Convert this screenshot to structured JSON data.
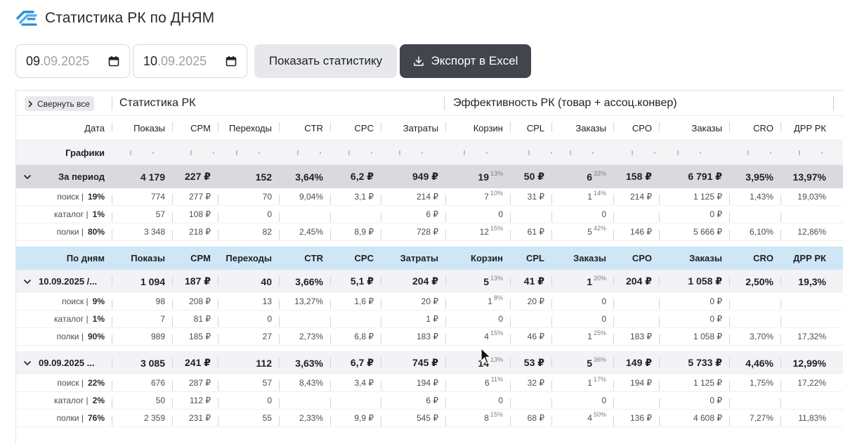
{
  "page": {
    "title": "Статистика РК по ДНЯМ"
  },
  "controls": {
    "date_from": {
      "day": "09",
      "rest": ".09.2025"
    },
    "date_to": {
      "day": "10",
      "rest": ".09.2025"
    },
    "show_button": "Показать статистику",
    "export_button": "Экспорт в Excel"
  },
  "table": {
    "collapse_all": "Свернуть все",
    "group_stats": "Статистика РК",
    "group_efficiency": "Эффективность РК (товар + ассоц.конвер)",
    "columns": [
      "Дата",
      "Показы",
      "CPM",
      "Переходы",
      "CTR",
      "CPC",
      "Затраты",
      "Корзин",
      "CPL",
      "Заказы",
      "CPO",
      "Заказы",
      "CRO",
      "ДРР РК"
    ],
    "graphs_label": "Графики",
    "period": {
      "label": "За период",
      "values": [
        "4 179",
        "227 ₽",
        "152",
        "3,64%",
        "6,2 ₽",
        "949 ₽",
        "19",
        "50 ₽",
        "6",
        "158 ₽",
        "6 791 ₽",
        "3,95%",
        "13,97%"
      ],
      "sup_cart": "13%",
      "sup_orders": "32%",
      "subs": [
        {
          "name": "поиск |",
          "pct": "19%",
          "values": [
            "774",
            "277 ₽",
            "70",
            "9,04%",
            "3,1 ₽",
            "214 ₽",
            "7",
            "31 ₽",
            "1",
            "214 ₽",
            "1 125 ₽",
            "1,43%",
            "19,03%"
          ],
          "sup_cart": "10%",
          "sup_orders": "14%"
        },
        {
          "name": "каталог |",
          "pct": "1%",
          "values": [
            "57",
            "108 ₽",
            "0",
            "",
            "",
            "6 ₽",
            "0",
            "",
            "0",
            "",
            "0 ₽",
            "",
            ""
          ],
          "sup_cart": "",
          "sup_orders": ""
        },
        {
          "name": "полки |",
          "pct": "80%",
          "values": [
            "3 348",
            "218 ₽",
            "82",
            "2,45%",
            "8,9 ₽",
            "728 ₽",
            "12",
            "61 ₽",
            "5",
            "146 ₽",
            "5 666 ₽",
            "6,10%",
            "12,86%"
          ],
          "sup_cart": "15%",
          "sup_orders": "42%"
        }
      ]
    },
    "days_header": {
      "label": "По дням",
      "columns": [
        "Показы",
        "CPM",
        "Переходы",
        "CTR",
        "CPC",
        "Затраты",
        "Корзин",
        "CPL",
        "Заказы",
        "CPO",
        "Заказы",
        "CRO",
        "ДРР РК"
      ]
    },
    "days": [
      {
        "label": "10.09.2025 /...",
        "values": [
          "1 094",
          "187 ₽",
          "40",
          "3,66%",
          "5,1 ₽",
          "204 ₽",
          "5",
          "41 ₽",
          "1",
          "204 ₽",
          "1 058 ₽",
          "2,50%",
          "19,3%"
        ],
        "sup_cart": "13%",
        "sup_orders": "20%",
        "subs": [
          {
            "name": "поиск |",
            "pct": "9%",
            "values": [
              "98",
              "208 ₽",
              "13",
              "13,27%",
              "1,6 ₽",
              "20 ₽",
              "1",
              "20 ₽",
              "0",
              "",
              "0 ₽",
              "",
              ""
            ],
            "sup_cart": "8%",
            "sup_orders": ""
          },
          {
            "name": "каталог |",
            "pct": "1%",
            "values": [
              "7",
              "81 ₽",
              "0",
              "",
              "",
              "1 ₽",
              "0",
              "",
              "0",
              "",
              "0 ₽",
              "",
              ""
            ],
            "sup_cart": "",
            "sup_orders": ""
          },
          {
            "name": "полки |",
            "pct": "90%",
            "values": [
              "989",
              "185 ₽",
              "27",
              "2,73%",
              "6,8 ₽",
              "183 ₽",
              "4",
              "46 ₽",
              "1",
              "183 ₽",
              "1 058 ₽",
              "3,70%",
              "17,32%"
            ],
            "sup_cart": "15%",
            "sup_orders": "25%"
          }
        ]
      },
      {
        "label": "09.09.2025 ...",
        "values": [
          "3 085",
          "241 ₽",
          "112",
          "3,63%",
          "6,7 ₽",
          "745 ₽",
          "14",
          "53 ₽",
          "5",
          "149 ₽",
          "5 733 ₽",
          "4,46%",
          "12,99%"
        ],
        "sup_cart": "13%",
        "sup_orders": "36%",
        "subs": [
          {
            "name": "поиск |",
            "pct": "22%",
            "values": [
              "676",
              "287 ₽",
              "57",
              "8,43%",
              "3,4 ₽",
              "194 ₽",
              "6",
              "32 ₽",
              "1",
              "194 ₽",
              "1 125 ₽",
              "1,75%",
              "17,22%"
            ],
            "sup_cart": "11%",
            "sup_orders": "17%"
          },
          {
            "name": "каталог |",
            "pct": "2%",
            "values": [
              "50",
              "112 ₽",
              "0",
              "",
              "",
              "6 ₽",
              "0",
              "",
              "0",
              "",
              "0 ₽",
              "",
              ""
            ],
            "sup_cart": "",
            "sup_orders": ""
          },
          {
            "name": "полки |",
            "pct": "76%",
            "values": [
              "2 359",
              "231 ₽",
              "55",
              "2,33%",
              "9,9 ₽",
              "545 ₽",
              "8",
              "68 ₽",
              "4",
              "136 ₽",
              "4 608 ₽",
              "7,27%",
              "11,83%"
            ],
            "sup_cart": "15%",
            "sup_orders": "50%"
          }
        ]
      }
    ]
  }
}
